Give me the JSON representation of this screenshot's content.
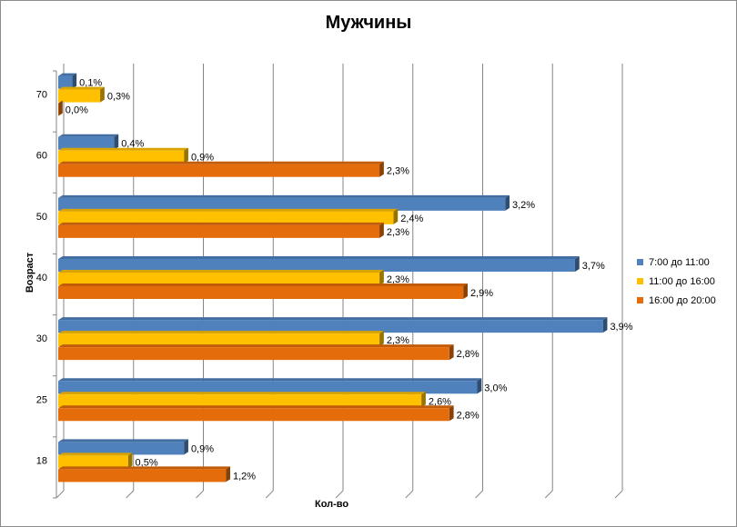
{
  "chart_data": {
    "type": "bar",
    "orientation": "horizontal",
    "title": "Мужчины",
    "ylabel": "Возраст",
    "xlabel": "Кол-во",
    "categories": [
      "18",
      "25",
      "30",
      "40",
      "50",
      "60",
      "70"
    ],
    "series": [
      {
        "name": "7:00 до 11:00",
        "color": "#4f81bd",
        "values": [
          0.9,
          3.0,
          3.9,
          3.7,
          3.2,
          0.4,
          0.1
        ],
        "labels": [
          "0,9%",
          "3,0%",
          "3,9%",
          "3,7%",
          "3,2%",
          "0,4%",
          "0,1%"
        ]
      },
      {
        "name": "11:00 до 16:00",
        "color": "#ffc000",
        "values": [
          0.5,
          2.6,
          2.3,
          2.3,
          2.4,
          0.9,
          0.3
        ],
        "labels": [
          "0,5%",
          "2,6%",
          "2,3%",
          "2,3%",
          "2,4%",
          "0,9%",
          "0,3%"
        ]
      },
      {
        "name": "16:00 до 20:00",
        "color": "#e46c0a",
        "values": [
          1.2,
          2.8,
          2.8,
          2.9,
          2.3,
          2.3,
          0.0
        ],
        "labels": [
          "1,2%",
          "2,8%",
          "2,8%",
          "2,9%",
          "2,3%",
          "2,3%",
          "0,0%"
        ]
      }
    ],
    "xlim": [
      0,
      4.0
    ],
    "grid": true,
    "legend_position": "right",
    "style": "3d-clustered-bar"
  }
}
